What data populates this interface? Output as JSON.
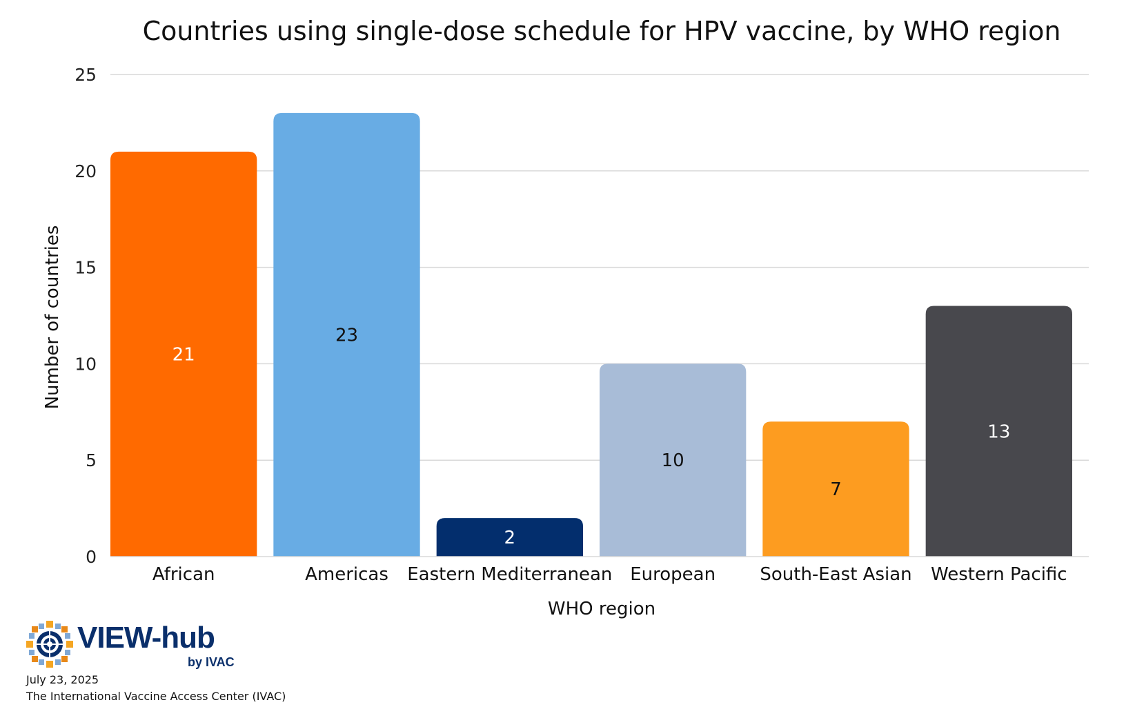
{
  "chart_data": {
    "type": "bar",
    "title": "Countries using single-dose schedule for HPV vaccine, by WHO region",
    "xlabel": "WHO region",
    "ylabel": "Number of countries",
    "categories": [
      "African",
      "Americas",
      "Eastern Mediterranean",
      "European",
      "South-East Asian",
      "Western Pacific"
    ],
    "values": [
      21,
      23,
      2,
      10,
      7,
      13
    ],
    "data_labels": [
      "21",
      "23",
      "2",
      "10",
      "7",
      "13"
    ],
    "colors": [
      "#ff6a00",
      "#68ace4",
      "#032e6d",
      "#a8bcd7",
      "#fd9c20",
      "#48484d"
    ],
    "label_colors": [
      "#ffffff",
      "#111111",
      "#ffffff",
      "#111111",
      "#111111",
      "#ffffff"
    ],
    "ylim": [
      0,
      25
    ],
    "yticks": [
      "0",
      "5",
      "10",
      "15",
      "20",
      "25"
    ],
    "grid": true,
    "legend": "none"
  },
  "logo": {
    "main": "VIEW-hub",
    "sub": "by IVAC"
  },
  "footer": {
    "date": "July 23, 2025",
    "source": "The International Vaccine Access Center (IVAC)"
  }
}
